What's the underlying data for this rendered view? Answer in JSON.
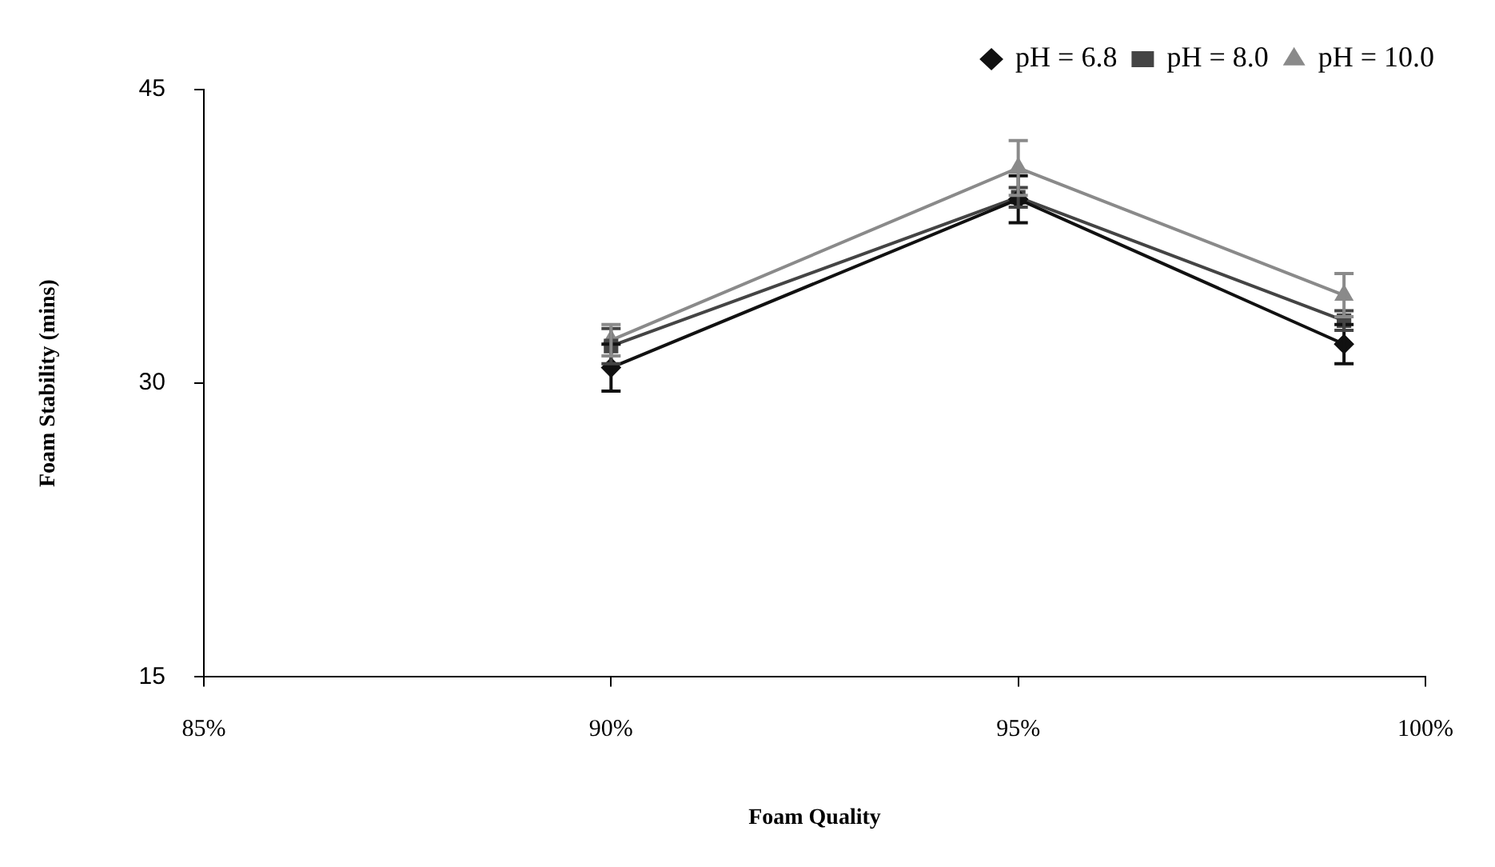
{
  "chart_data": {
    "type": "line",
    "xlabel": "Foam Quality",
    "ylabel": "Foam Stability (mins)",
    "x": [
      90,
      95,
      99
    ],
    "xlim": [
      85,
      100
    ],
    "xticks": [
      {
        "value": 85,
        "label": "85%"
      },
      {
        "value": 90,
        "label": "90%"
      },
      {
        "value": 95,
        "label": "95%"
      },
      {
        "value": 100,
        "label": "100%"
      }
    ],
    "ylim": [
      15,
      45
    ],
    "yticks": [
      15,
      30,
      45
    ],
    "grid": false,
    "legend": "top right",
    "series": [
      {
        "name": "pH = 6.8",
        "color": "#111111",
        "marker": "diamond",
        "values": [
          30.8,
          39.4,
          32.0
        ],
        "errors": [
          1.2,
          1.2,
          1.0
        ]
      },
      {
        "name": "pH = 8.0",
        "color": "#444444",
        "marker": "square",
        "values": [
          31.9,
          39.5,
          33.2
        ],
        "errors": [
          0.9,
          0.5,
          0.5
        ]
      },
      {
        "name": "pH = 10.0",
        "color": "#8a8a8a",
        "marker": "triangle",
        "values": [
          32.2,
          41.0,
          34.5
        ],
        "errors": [
          0.8,
          1.4,
          1.1
        ]
      }
    ]
  }
}
